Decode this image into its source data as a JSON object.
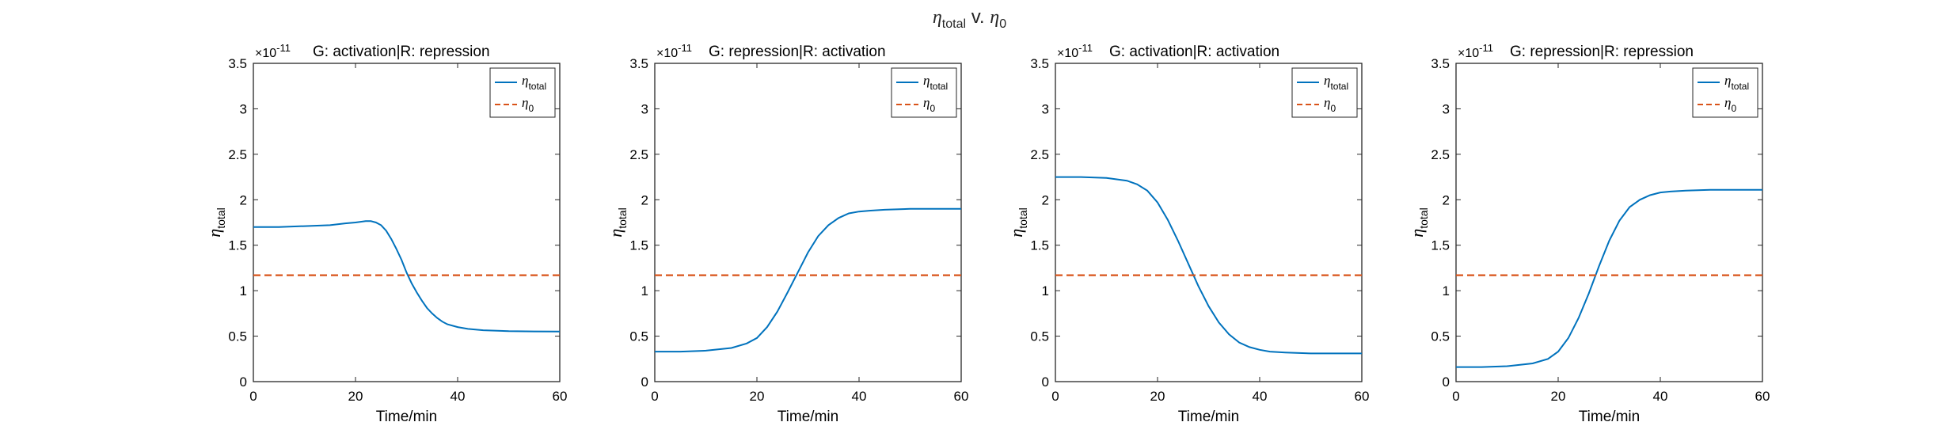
{
  "figure": {
    "title_sym": "η",
    "title_sub": "total",
    "title_mid": " v. ",
    "title_sym2": "η",
    "title_sub2": "0"
  },
  "chart_data": [
    {
      "type": "line",
      "title": "G: activation|R: repression",
      "exponent_label": "×10",
      "exponent": "-11",
      "xlabel": "Time/min",
      "ylabel_sym": "η",
      "ylabel_sub": "total",
      "xlim": [
        0,
        60
      ],
      "ylim": [
        0,
        3.5
      ],
      "xticks": [
        "0",
        "20",
        "40",
        "60"
      ],
      "yticks": [
        "0",
        "0.5",
        "1",
        "1.5",
        "2",
        "2.5",
        "3",
        "3.5"
      ],
      "legend": [
        {
          "sym": "η",
          "sub": "total",
          "color": "#0072bd",
          "dash": false
        },
        {
          "sym": "η",
          "sub": "0",
          "color": "#d95319",
          "dash": true
        }
      ],
      "legend_position": "top-right",
      "series": [
        {
          "name": "η_total",
          "color": "#0072bd",
          "x": [
            0,
            5,
            10,
            15,
            18,
            20,
            22,
            23,
            24,
            25,
            26,
            27,
            28,
            29,
            30,
            31,
            32,
            33,
            34,
            35,
            36,
            37,
            38,
            40,
            42,
            45,
            50,
            55,
            60
          ],
          "y": [
            1.7,
            1.7,
            1.71,
            1.72,
            1.74,
            1.75,
            1.765,
            1.765,
            1.75,
            1.72,
            1.66,
            1.57,
            1.46,
            1.34,
            1.2,
            1.08,
            0.98,
            0.89,
            0.81,
            0.75,
            0.7,
            0.66,
            0.63,
            0.6,
            0.58,
            0.565,
            0.555,
            0.552,
            0.55
          ]
        },
        {
          "name": "η_0",
          "color": "#d95319",
          "dashed": true,
          "x": [
            0,
            60
          ],
          "y": [
            1.17,
            1.17
          ]
        }
      ]
    },
    {
      "type": "line",
      "title": "G: repression|R: activation",
      "exponent_label": "×10",
      "exponent": "-11",
      "xlabel": "Time/min",
      "ylabel_sym": "η",
      "ylabel_sub": "total",
      "xlim": [
        0,
        60
      ],
      "ylim": [
        0,
        3.5
      ],
      "xticks": [
        "0",
        "20",
        "40",
        "60"
      ],
      "yticks": [
        "0",
        "0.5",
        "1",
        "1.5",
        "2",
        "2.5",
        "3",
        "3.5"
      ],
      "legend": [
        {
          "sym": "η",
          "sub": "total",
          "color": "#0072bd",
          "dash": false
        },
        {
          "sym": "η",
          "sub": "0",
          "color": "#d95319",
          "dash": true
        }
      ],
      "legend_position": "top-right",
      "series": [
        {
          "name": "η_total",
          "color": "#0072bd",
          "x": [
            0,
            5,
            10,
            15,
            18,
            20,
            22,
            24,
            26,
            28,
            30,
            32,
            34,
            36,
            38,
            40,
            42,
            45,
            50,
            55,
            60
          ],
          "y": [
            0.33,
            0.33,
            0.34,
            0.37,
            0.42,
            0.48,
            0.6,
            0.77,
            0.98,
            1.2,
            1.42,
            1.6,
            1.72,
            1.8,
            1.85,
            1.87,
            1.88,
            1.89,
            1.9,
            1.9,
            1.9
          ]
        },
        {
          "name": "η_0",
          "color": "#d95319",
          "dashed": true,
          "x": [
            0,
            60
          ],
          "y": [
            1.17,
            1.17
          ]
        }
      ]
    },
    {
      "type": "line",
      "title": "G: activation|R: activation",
      "exponent_label": "×10",
      "exponent": "-11",
      "xlabel": "Time/min",
      "ylabel_sym": "η",
      "ylabel_sub": "total",
      "xlim": [
        0,
        60
      ],
      "ylim": [
        0,
        3.5
      ],
      "xticks": [
        "0",
        "20",
        "40",
        "60"
      ],
      "yticks": [
        "0",
        "0.5",
        "1",
        "1.5",
        "2",
        "2.5",
        "3",
        "3.5"
      ],
      "legend": [
        {
          "sym": "η",
          "sub": "total",
          "color": "#0072bd",
          "dash": false
        },
        {
          "sym": "η",
          "sub": "0",
          "color": "#d95319",
          "dash": true
        }
      ],
      "legend_position": "top-right",
      "series": [
        {
          "name": "η_total",
          "color": "#0072bd",
          "x": [
            0,
            5,
            10,
            14,
            16,
            18,
            20,
            22,
            24,
            26,
            28,
            30,
            32,
            34,
            36,
            38,
            40,
            42,
            45,
            50,
            55,
            60
          ],
          "y": [
            2.25,
            2.25,
            2.24,
            2.21,
            2.17,
            2.1,
            1.97,
            1.78,
            1.55,
            1.3,
            1.05,
            0.83,
            0.65,
            0.52,
            0.43,
            0.38,
            0.35,
            0.33,
            0.32,
            0.31,
            0.31,
            0.31
          ]
        },
        {
          "name": "η_0",
          "color": "#d95319",
          "dashed": true,
          "x": [
            0,
            60
          ],
          "y": [
            1.17,
            1.17
          ]
        }
      ]
    },
    {
      "type": "line",
      "title": "G: repression|R: repression",
      "exponent_label": "×10",
      "exponent": "-11",
      "xlabel": "Time/min",
      "ylabel_sym": "η",
      "ylabel_sub": "total",
      "xlim": [
        0,
        60
      ],
      "ylim": [
        0,
        3.5
      ],
      "xticks": [
        "0",
        "20",
        "40",
        "60"
      ],
      "yticks": [
        "0",
        "0.5",
        "1",
        "1.5",
        "2",
        "2.5",
        "3",
        "3.5"
      ],
      "legend": [
        {
          "sym": "η",
          "sub": "total",
          "color": "#0072bd",
          "dash": false
        },
        {
          "sym": "η",
          "sub": "0",
          "color": "#d95319",
          "dash": true
        }
      ],
      "legend_position": "top-right",
      "series": [
        {
          "name": "η_total",
          "color": "#0072bd",
          "x": [
            0,
            5,
            10,
            15,
            18,
            20,
            22,
            24,
            26,
            28,
            30,
            32,
            34,
            36,
            38,
            40,
            42,
            45,
            50,
            55,
            60
          ],
          "y": [
            0.16,
            0.16,
            0.17,
            0.2,
            0.25,
            0.33,
            0.48,
            0.7,
            0.97,
            1.27,
            1.55,
            1.77,
            1.92,
            2.0,
            2.05,
            2.08,
            2.09,
            2.1,
            2.11,
            2.11,
            2.11
          ]
        },
        {
          "name": "η_0",
          "color": "#d95319",
          "dashed": true,
          "x": [
            0,
            60
          ],
          "y": [
            1.17,
            1.17
          ]
        }
      ]
    }
  ]
}
